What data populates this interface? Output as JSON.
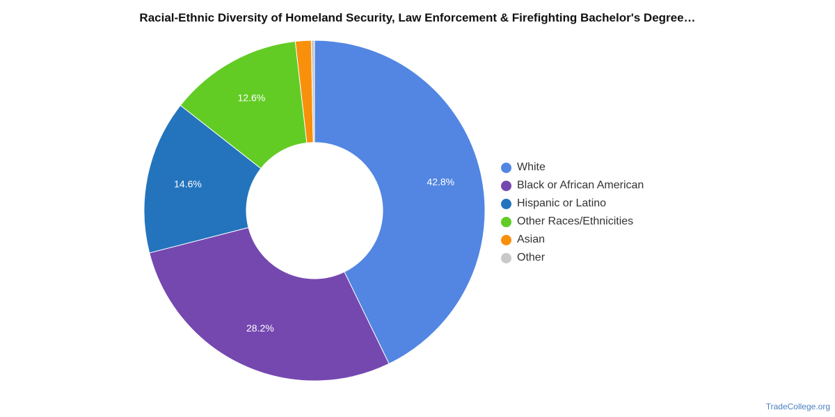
{
  "chart_data": {
    "type": "pie",
    "title": "Racial-Ethnic Diversity of Homeland Security, Law Enforcement & Firefighting Bachelor's Degree…",
    "donut": true,
    "legend_position": "right",
    "slices": [
      {
        "label": "White",
        "value": 42.8,
        "value_label": "42.8%",
        "color": "#5286e2"
      },
      {
        "label": "Black or African American",
        "value": 28.2,
        "value_label": "28.2%",
        "color": "#7548b0"
      },
      {
        "label": "Hispanic or Latino",
        "value": 14.6,
        "value_label": "14.6%",
        "color": "#2474bd"
      },
      {
        "label": "Other Races/Ethnicities",
        "value": 12.6,
        "value_label": "12.6%",
        "color": "#62cc25"
      },
      {
        "label": "Asian",
        "value": 1.5,
        "value_label": "",
        "color": "#f8900c"
      },
      {
        "label": "Other",
        "value": 0.3,
        "value_label": "",
        "color": "#c9c9c9"
      }
    ]
  },
  "source": "TradeCollege.org"
}
